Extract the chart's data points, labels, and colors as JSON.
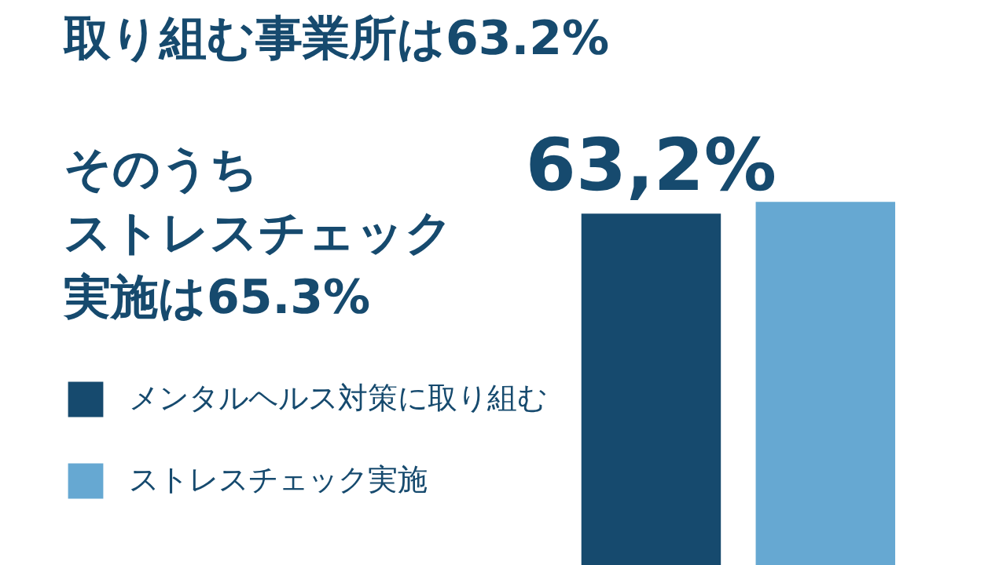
{
  "chart_data": {
    "type": "bar",
    "title": "取り組む事業所は63.2%",
    "subtitle": "そのうちストレスチェック実施は65.3%",
    "categories": [
      null,
      null
    ],
    "series": [
      {
        "name": "メンタルヘルス対策に取り組む",
        "color": "#164a6e",
        "values": [
          63.2,
          null
        ],
        "value_labels": [
          "63,2%",
          null
        ]
      },
      {
        "name": "ストレスチェック実施",
        "color": "#66a8d2",
        "values": [
          null,
          65.3
        ],
        "value_labels": [
          null,
          null
        ]
      }
    ],
    "stacked": true,
    "legend": "bottom left",
    "grid": false,
    "tick_labels": false
  }
}
